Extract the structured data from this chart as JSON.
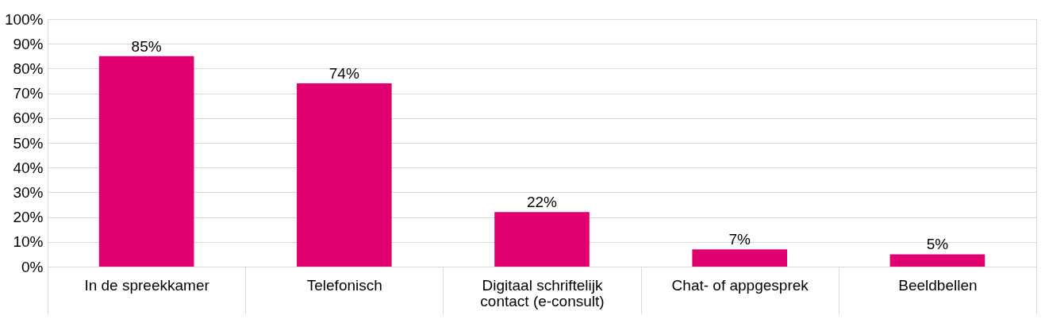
{
  "chart_data": {
    "type": "bar",
    "categories": [
      "In de spreekkamer",
      "Telefonisch",
      "Digitaal schriftelijk contact (e-consult)",
      "Chat- of appgesprek",
      "Beeldbellen"
    ],
    "values": [
      85,
      74,
      22,
      7,
      5
    ],
    "value_labels": [
      "85%",
      "74%",
      "22%",
      "7%",
      "5%"
    ],
    "color": "#e0006f",
    "ylim": [
      0,
      100
    ],
    "yticks": [
      {
        "value": 0,
        "label": "0%"
      },
      {
        "value": 10,
        "label": "10%"
      },
      {
        "value": 20,
        "label": "20%"
      },
      {
        "value": 30,
        "label": "30%"
      },
      {
        "value": 40,
        "label": "40%"
      },
      {
        "value": 50,
        "label": "50%"
      },
      {
        "value": 60,
        "label": "60%"
      },
      {
        "value": 70,
        "label": "70%"
      },
      {
        "value": 80,
        "label": "80%"
      },
      {
        "value": 90,
        "label": "90%"
      },
      {
        "value": 100,
        "label": "100%"
      }
    ],
    "grid": "y"
  }
}
